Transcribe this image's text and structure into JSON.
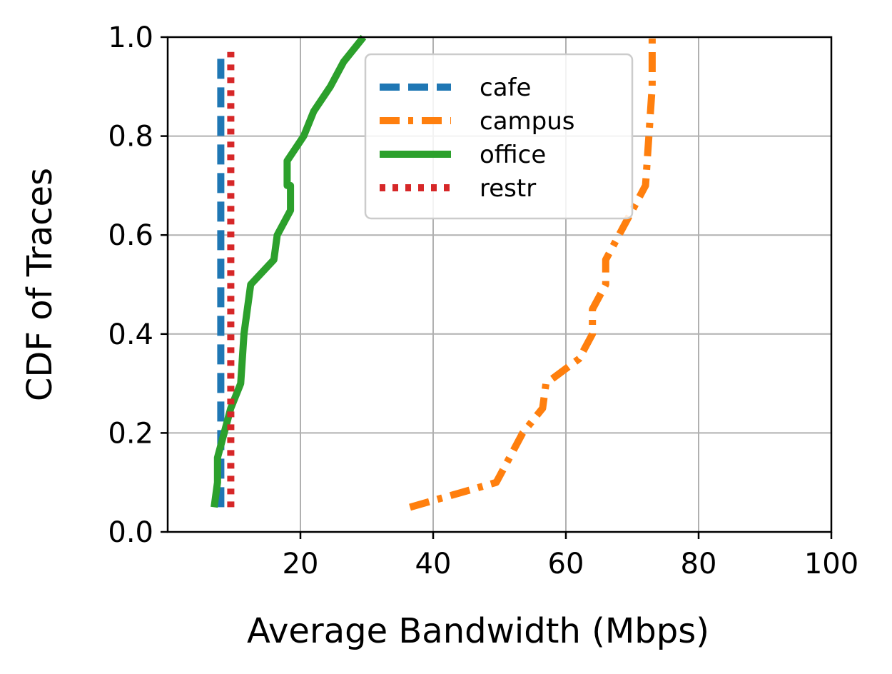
{
  "chart_data": {
    "type": "line",
    "title": "",
    "xlabel": "Average Bandwidth (Mbps)",
    "ylabel": "CDF of Traces",
    "xlim": [
      0,
      100
    ],
    "ylim": [
      0.0,
      1.0
    ],
    "x_ticks": [
      20,
      40,
      60,
      80,
      100
    ],
    "x_tick_labels": [
      "20",
      "40",
      "60",
      "80",
      "100"
    ],
    "y_ticks": [
      0.0,
      0.2,
      0.4,
      0.6,
      0.8,
      1.0
    ],
    "y_tick_labels": [
      "0.0",
      "0.2",
      "0.4",
      "0.6",
      "0.8",
      "1.0"
    ],
    "grid": true,
    "legend_position": "upper-center",
    "series": [
      {
        "name": "cafe",
        "color": "#1f77b4",
        "style": "dashed",
        "x": [
          8.0,
          8.0,
          8.0,
          8.0,
          8.0,
          8.0,
          8.0,
          8.0,
          8.0,
          8.0,
          8.0
        ],
        "y": [
          0.05,
          0.1,
          0.2,
          0.3,
          0.4,
          0.5,
          0.6,
          0.7,
          0.8,
          0.9,
          0.97
        ]
      },
      {
        "name": "campus",
        "color": "#ff7f0e",
        "style": "dashdot",
        "x": [
          36.5,
          49.5,
          51.5,
          53.5,
          56.5,
          57.0,
          62.0,
          64.0,
          64.0,
          66.0,
          66.0,
          68.0,
          70.0,
          72.0,
          72.5,
          73.0,
          73.0
        ],
        "y": [
          0.05,
          0.1,
          0.15,
          0.2,
          0.25,
          0.3,
          0.35,
          0.4,
          0.45,
          0.5,
          0.55,
          0.6,
          0.65,
          0.7,
          0.8,
          0.9,
          1.0
        ]
      },
      {
        "name": "office",
        "color": "#2ca02c",
        "style": "solid",
        "x": [
          7.0,
          7.5,
          7.5,
          8.5,
          9.5,
          11.0,
          11.5,
          12.0,
          12.5,
          16.0,
          16.5,
          18.5,
          18.5,
          18.0,
          18.0,
          20.5,
          22.0,
          24.5,
          26.5,
          29.5
        ],
        "y": [
          0.05,
          0.1,
          0.15,
          0.2,
          0.25,
          0.3,
          0.4,
          0.45,
          0.5,
          0.55,
          0.6,
          0.65,
          0.7,
          0.7,
          0.75,
          0.8,
          0.85,
          0.9,
          0.95,
          1.0
        ]
      },
      {
        "name": "restr",
        "color": "#d62728",
        "style": "dotted",
        "x": [
          9.5,
          9.5,
          9.5,
          9.5,
          9.5,
          9.5,
          9.5,
          9.5,
          9.5,
          9.5,
          9.5
        ],
        "y": [
          0.05,
          0.1,
          0.2,
          0.3,
          0.4,
          0.5,
          0.6,
          0.7,
          0.8,
          0.9,
          0.97
        ]
      }
    ]
  }
}
